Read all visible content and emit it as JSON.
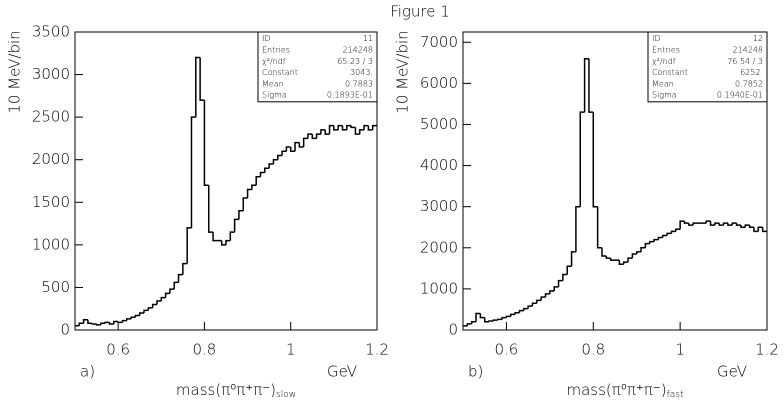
{
  "title": "Figure 1",
  "chart_data": [
    {
      "type": "histogram",
      "panel_label": "a)",
      "xlabel": {
        "text": "mass(π⁰π⁺π⁻)",
        "subscript": "slow"
      },
      "xunit": "GeV",
      "ylabel": "10 MeV/bin",
      "color": "#000000",
      "bins": [
        0.5,
        0.51,
        0.52,
        0.53,
        0.54,
        0.55,
        0.56,
        0.57,
        0.58,
        0.59,
        0.6,
        0.61,
        0.62,
        0.63,
        0.64,
        0.65,
        0.66,
        0.67,
        0.68,
        0.69,
        0.7,
        0.71,
        0.72,
        0.73,
        0.74,
        0.75,
        0.76,
        0.77,
        0.78,
        0.79,
        0.8,
        0.81,
        0.82,
        0.83,
        0.84,
        0.85,
        0.86,
        0.87,
        0.88,
        0.89,
        0.9,
        0.91,
        0.92,
        0.93,
        0.94,
        0.95,
        0.96,
        0.97,
        0.98,
        0.99,
        1,
        1.01,
        1.02,
        1.03,
        1.04,
        1.05,
        1.06,
        1.07,
        1.08,
        1.09,
        1.1,
        1.11,
        1.12,
        1.13,
        1.14,
        1.15,
        1.16,
        1.17,
        1.18,
        1.19,
        1.2
      ],
      "values": [
        50,
        80,
        120,
        80,
        70,
        60,
        80,
        90,
        70,
        100,
        90,
        110,
        130,
        150,
        170,
        200,
        230,
        260,
        300,
        340,
        380,
        430,
        480,
        560,
        650,
        780,
        1200,
        2500,
        3200,
        2700,
        1700,
        1150,
        1050,
        1050,
        1000,
        1050,
        1150,
        1300,
        1400,
        1550,
        1650,
        1700,
        1800,
        1850,
        1900,
        1950,
        2000,
        2050,
        2100,
        2150,
        2100,
        2200,
        2150,
        2250,
        2300,
        2250,
        2300,
        2350,
        2300,
        2400,
        2350,
        2400,
        2350,
        2400,
        2380,
        2300,
        2350,
        2400,
        2350,
        2400
      ],
      "xlim": [
        0.5,
        1.2
      ],
      "xticks": [
        0.6,
        0.8,
        1,
        1.2
      ],
      "ylim": [
        0,
        3500
      ],
      "yticks": [
        0,
        500,
        1000,
        1500,
        2000,
        2500,
        3000,
        3500
      ],
      "stats": [
        [
          "ID",
          "11"
        ],
        [
          "Entries",
          "214248"
        ],
        [
          "χ²/ndf",
          "65.23  /   3"
        ],
        [
          "Constant",
          "3043."
        ],
        [
          "Mean",
          "0.7883"
        ],
        [
          "Sigma",
          "0.1893E-01"
        ]
      ]
    },
    {
      "type": "histogram",
      "panel_label": "b)",
      "xlabel": {
        "text": "mass(π⁰π⁺π⁻)",
        "subscript": "fast"
      },
      "xunit": "GeV",
      "ylabel": "10 MeV/bin",
      "color": "#000000",
      "bins": [
        0.5,
        0.51,
        0.52,
        0.53,
        0.54,
        0.55,
        0.56,
        0.57,
        0.58,
        0.59,
        0.6,
        0.61,
        0.62,
        0.63,
        0.64,
        0.65,
        0.66,
        0.67,
        0.68,
        0.69,
        0.7,
        0.71,
        0.72,
        0.73,
        0.74,
        0.75,
        0.76,
        0.77,
        0.78,
        0.79,
        0.8,
        0.81,
        0.82,
        0.83,
        0.84,
        0.85,
        0.86,
        0.87,
        0.88,
        0.89,
        0.9,
        0.91,
        0.92,
        0.93,
        0.94,
        0.95,
        0.96,
        0.97,
        0.98,
        0.99,
        1,
        1.01,
        1.02,
        1.03,
        1.04,
        1.05,
        1.06,
        1.07,
        1.08,
        1.09,
        1.1,
        1.11,
        1.12,
        1.13,
        1.14,
        1.15,
        1.16,
        1.17,
        1.18,
        1.19,
        1.2
      ],
      "values": [
        100,
        150,
        200,
        400,
        300,
        200,
        220,
        240,
        260,
        300,
        330,
        380,
        420,
        470,
        520,
        580,
        650,
        720,
        800,
        880,
        950,
        1050,
        1200,
        1350,
        1550,
        1900,
        3000,
        5300,
        6600,
        5300,
        3000,
        2000,
        1800,
        1750,
        1700,
        1700,
        1600,
        1650,
        1750,
        1850,
        1900,
        2000,
        2100,
        2150,
        2200,
        2250,
        2300,
        2350,
        2400,
        2450,
        2650,
        2600,
        2550,
        2600,
        2600,
        2600,
        2650,
        2550,
        2600,
        2550,
        2600,
        2550,
        2600,
        2550,
        2500,
        2550,
        2500,
        2400,
        2500,
        2400
      ],
      "xlim": [
        0.5,
        1.2
      ],
      "xticks": [
        0.6,
        0.8,
        1,
        1.2
      ],
      "ylim": [
        0,
        7250
      ],
      "yticks": [
        0,
        1000,
        2000,
        3000,
        4000,
        5000,
        6000,
        7000
      ],
      "stats": [
        [
          "ID",
          "12"
        ],
        [
          "Entries",
          "214248"
        ],
        [
          "χ²/ndf",
          "76.54  /   3"
        ],
        [
          "Constant",
          "6252."
        ],
        [
          "Mean",
          "0.7852"
        ],
        [
          "Sigma",
          "0.1940E-01"
        ]
      ]
    }
  ]
}
